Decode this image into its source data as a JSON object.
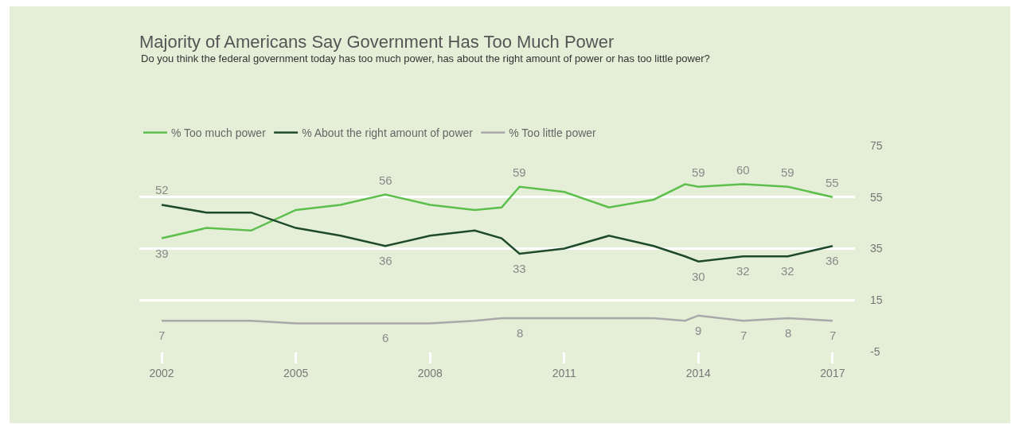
{
  "chart_data": {
    "type": "line",
    "title": "Majority of Americans Say Government Has Too Much Power",
    "subtitle": "Do you think the federal government today has too much power, has about the right amount of power or has too little power?",
    "x": [
      2002,
      2003,
      2004,
      2005,
      2006,
      2007,
      2008,
      2009,
      2009.6,
      2010,
      2011,
      2012,
      2013,
      2013.7,
      2014,
      2015,
      2016,
      2017
    ],
    "series": [
      {
        "name": "% Too much power",
        "color": "#5cbf4c",
        "values": [
          39,
          43,
          42,
          50,
          52,
          56,
          52,
          50,
          51,
          59,
          57,
          51,
          54,
          60,
          59,
          60,
          59,
          55
        ],
        "value_labels": [
          "39",
          null,
          null,
          null,
          null,
          "56",
          null,
          null,
          null,
          "59",
          null,
          null,
          null,
          null,
          "59",
          "60",
          "59",
          "55"
        ]
      },
      {
        "name": "% About the right amount of power",
        "color": "#1e4a2b",
        "values": [
          52,
          49,
          49,
          43,
          40,
          36,
          40,
          42,
          39,
          33,
          35,
          40,
          36,
          32,
          30,
          32,
          32,
          36
        ],
        "value_labels": [
          "52",
          null,
          null,
          null,
          null,
          "36",
          null,
          null,
          null,
          "33",
          null,
          null,
          null,
          null,
          "30",
          "32",
          "32",
          "36"
        ]
      },
      {
        "name": "% Too little power",
        "color": "#a9a9a9",
        "values": [
          7,
          7,
          7,
          6,
          6,
          6,
          6,
          7,
          8,
          8,
          8,
          8,
          8,
          7,
          9,
          7,
          8,
          7
        ],
        "value_labels": [
          "7",
          null,
          null,
          null,
          null,
          "6",
          null,
          null,
          null,
          "8",
          null,
          null,
          null,
          null,
          "9",
          "7",
          "8",
          "7"
        ]
      }
    ],
    "xlim": [
      2001.5,
      2017.5
    ],
    "xticks": [
      2002,
      2005,
      2008,
      2011,
      2014,
      2017
    ],
    "ylim": [
      -5,
      75
    ],
    "yticks": [
      -5,
      15,
      35,
      55,
      75
    ],
    "grid": "y",
    "legend": "top left",
    "marker": "none",
    "line_style": "solid"
  }
}
